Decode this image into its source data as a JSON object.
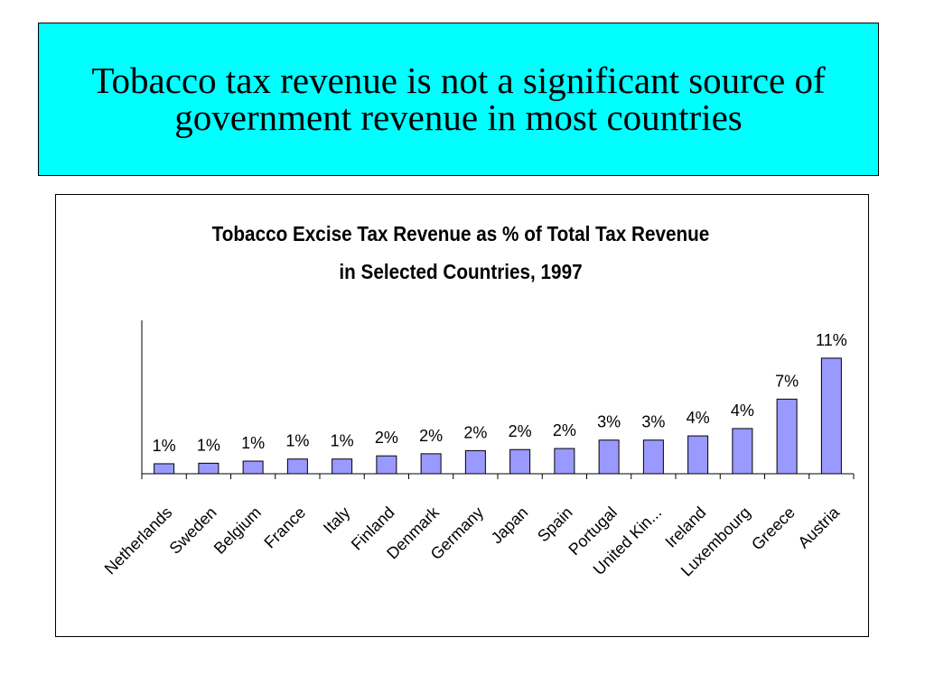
{
  "header": {
    "title": "Tobacco tax revenue is not a significant source of government revenue in most countries"
  },
  "chart_data": {
    "type": "bar",
    "title": "Tobacco Excise Tax Revenue as % of Total Tax Revenue in Selected Countries, 1997",
    "categories": [
      "Netherlands",
      "Sweden",
      "Belgium",
      "France",
      "Italy",
      "Finland",
      "Denmark",
      "Germany",
      "Japan",
      "Spain",
      "Portugal",
      "United Kin...",
      "Ireland",
      "Luxembourg",
      "Greece",
      "Austria"
    ],
    "values": [
      0.95,
      1.0,
      1.2,
      1.4,
      1.4,
      1.7,
      1.9,
      2.2,
      2.3,
      2.4,
      3.2,
      3.2,
      3.6,
      4.3,
      7.1,
      11.0
    ],
    "value_labels": [
      "1%",
      "1%",
      "1%",
      "1%",
      "1%",
      "2%",
      "2%",
      "2%",
      "2%",
      "2%",
      "3%",
      "3%",
      "4%",
      "4%",
      "7%",
      "11%"
    ],
    "color": "#9999ff",
    "ylim": [
      0,
      14.6
    ]
  }
}
